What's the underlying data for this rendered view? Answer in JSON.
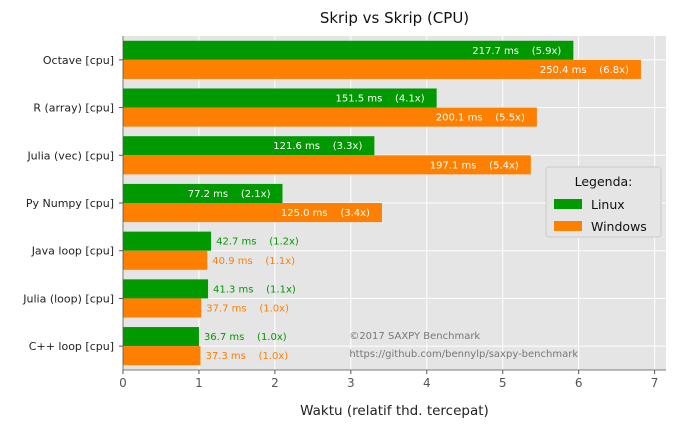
{
  "chart_data": {
    "type": "bar",
    "orientation": "horizontal",
    "title": "Skrip vs Skrip (CPU)",
    "xlabel": "Waktu (relatif thd. tercepat)",
    "ylabel": "",
    "xlim": [
      0,
      7.15
    ],
    "xticks": [
      "0",
      "1",
      "2",
      "3",
      "4",
      "5",
      "6",
      "7"
    ],
    "grid": true,
    "background": "#e5e5e5",
    "categories": [
      "Octave [cpu]",
      "R (array) [cpu]",
      "Julia (vec) [cpu]",
      "Py Numpy [cpu]",
      "Java loop [cpu]",
      "Julia (loop) [cpu]",
      "C++ loop [cpu]"
    ],
    "series": [
      {
        "name": "Linux",
        "color": "#009900",
        "values": [
          5.93,
          4.13,
          3.31,
          2.1,
          1.16,
          1.12,
          1.0
        ],
        "labels": [
          "217.7 ms    (5.9x)",
          "151.5 ms    (4.1x)",
          "121.6 ms    (3.3x)",
          "77.2 ms    (2.1x)",
          "42.7 ms    (1.2x)",
          "41.3 ms    (1.1x)",
          "36.7 ms    (1.0x)"
        ]
      },
      {
        "name": "Windows",
        "color": "#ff7f00",
        "values": [
          6.82,
          5.45,
          5.37,
          3.41,
          1.11,
          1.03,
          1.02
        ],
        "labels": [
          "250.4 ms    (6.8x)",
          "200.1 ms    (5.5x)",
          "197.1 ms    (5.4x)",
          "125.0 ms    (3.4x)",
          "40.9 ms    (1.1x)",
          "37.7 ms    (1.0x)",
          "37.3 ms    (1.0x)"
        ]
      }
    ],
    "legend": {
      "title": "Legenda:",
      "placement": "right"
    },
    "annotations": [
      "©2017 SAXPY Benchmark",
      "https://github.com/bennylp/saxpy-benchmark"
    ]
  }
}
